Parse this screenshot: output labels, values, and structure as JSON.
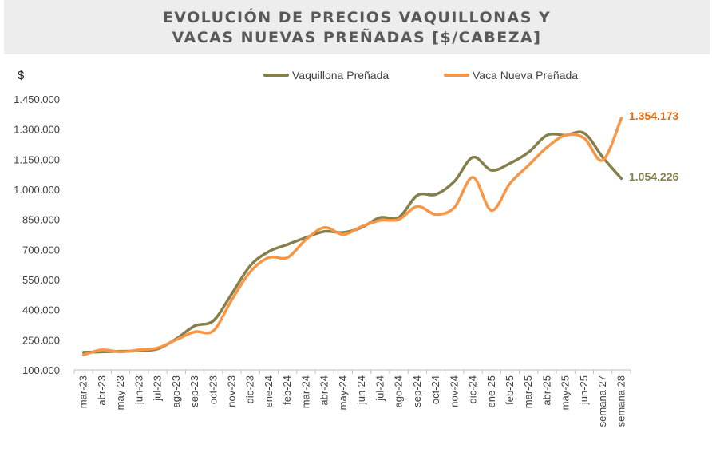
{
  "chart_data": {
    "type": "line",
    "title_lines": [
      "EVOLUCIÓN DE PRECIOS VAQUILLONAS Y",
      "VACAS NUEVAS PREÑADAS [$/CABEZA]"
    ],
    "ylabel": "$",
    "xlabel": "",
    "ylim": [
      100000,
      1450000
    ],
    "yticks": [
      100000,
      250000,
      400000,
      550000,
      700000,
      850000,
      1000000,
      1150000,
      1300000,
      1450000
    ],
    "ytick_labels": [
      "100.000",
      "250.000",
      "400.000",
      "550.000",
      "700.000",
      "850.000",
      "1.000.000",
      "1.150.000",
      "1.300.000",
      "1.450.000"
    ],
    "grid": false,
    "legend_position": "top",
    "categories": [
      "mar-23",
      "abr-23",
      "may-23",
      "jun-23",
      "jul-23",
      "ago-23",
      "sep-23",
      "oct-23",
      "nov-23",
      "dic-23",
      "ene-24",
      "feb-24",
      "mar-24",
      "abr-24",
      "may-24",
      "jun-24",
      "jul-24",
      "ago-24",
      "sep-24",
      "oct-24",
      "nov-24",
      "dic-24",
      "ene-25",
      "feb-25",
      "mar-25",
      "abr-25",
      "may-25",
      "jun-25",
      "semana 27",
      "semana 28"
    ],
    "series": [
      {
        "name": "Vaquillona Preñada",
        "color": "#857f4c",
        "values": [
          188000,
          190000,
          193000,
          195000,
          205000,
          255000,
          320000,
          345000,
          480000,
          620000,
          690000,
          725000,
          760000,
          790000,
          785000,
          810000,
          860000,
          860000,
          970000,
          975000,
          1040000,
          1160000,
          1095000,
          1130000,
          1185000,
          1270000,
          1270000,
          1280000,
          1160000,
          1054226
        ]
      },
      {
        "name": "Vaca Nueva Preñada",
        "color": "#f79646",
        "values": [
          175000,
          200000,
          190000,
          200000,
          210000,
          250000,
          290000,
          295000,
          450000,
          590000,
          660000,
          660000,
          750000,
          810000,
          775000,
          815000,
          845000,
          850000,
          915000,
          875000,
          910000,
          1060000,
          895000,
          1030000,
          1120000,
          1210000,
          1270000,
          1255000,
          1145000,
          1354173
        ]
      }
    ],
    "end_labels": [
      {
        "text": "1.354.173",
        "color": "#e46c0a"
      },
      {
        "text": "1.054.226",
        "color": "#857f4c"
      }
    ]
  }
}
